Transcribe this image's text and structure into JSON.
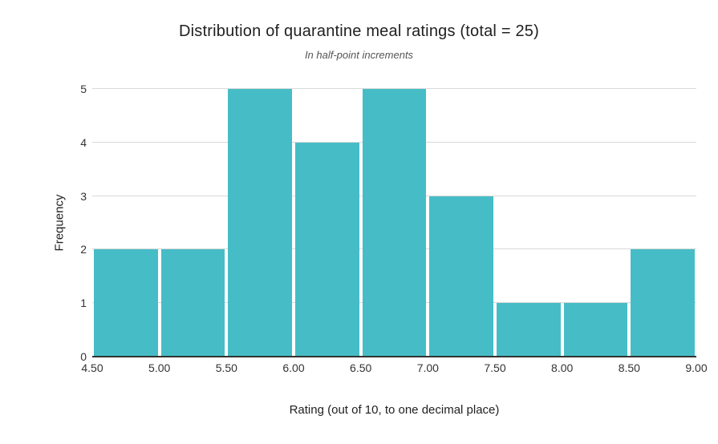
{
  "chart_data": {
    "type": "bar",
    "subtype": "histogram",
    "title": "Distribution of quarantine meal ratings (total = 25)",
    "subtitle": "In half-point increments",
    "xlabel": "Rating (out of 10, to one decimal place)",
    "ylabel": "Frequency",
    "bin_edges": [
      4.5,
      5.0,
      5.5,
      6.0,
      6.5,
      7.0,
      7.5,
      8.0,
      8.5,
      9.0
    ],
    "x_tick_labels": [
      "4.50",
      "5.00",
      "5.50",
      "6.00",
      "6.50",
      "7.00",
      "7.50",
      "8.00",
      "8.50",
      "9.00"
    ],
    "values": [
      2,
      2,
      5,
      4,
      5,
      3,
      1,
      1,
      2
    ],
    "total_count": 25,
    "y_ticks": [
      0,
      1,
      2,
      3,
      4,
      5
    ],
    "ylim": [
      0,
      5
    ],
    "grid": "horizontal-on",
    "legend": "none",
    "colors": {
      "bar": "#46bdc6",
      "gridline": "#d9d9d9",
      "axis_line": "#333333",
      "tick_label": "#333333",
      "title": "#212121",
      "subtitle": "#555555",
      "background": "#ffffff"
    }
  }
}
